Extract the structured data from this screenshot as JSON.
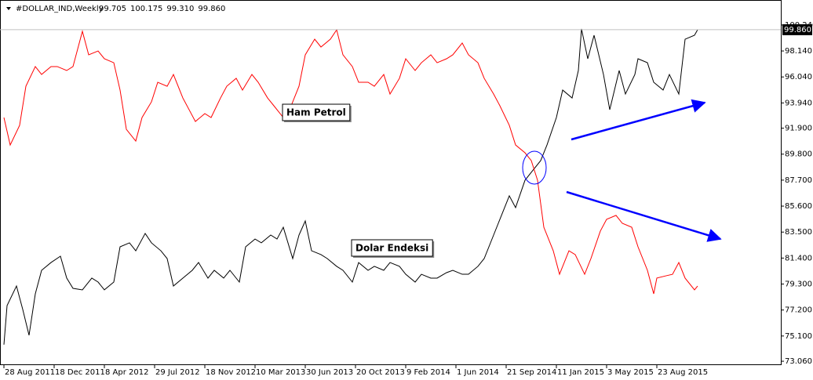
{
  "chart_data": {
    "type": "line",
    "title": "#DOLLAR_IND,Weekly",
    "header_values": [
      "99.705",
      "100.175",
      "99.310",
      "99.860"
    ],
    "xlim": [
      -1.25,
      247.5
    ],
    "xticks": [
      {
        "value": 0,
        "label": "28 Aug 2011"
      },
      {
        "value": 16,
        "label": "18 Dec 2011"
      },
      {
        "value": 32,
        "label": "8 Apr 2012"
      },
      {
        "value": 48,
        "label": "29 Jul 2012"
      },
      {
        "value": 64,
        "label": "18 Nov 2012"
      },
      {
        "value": 80,
        "label": "10 Mar 2013"
      },
      {
        "value": 96,
        "label": "30 Jun 2013"
      },
      {
        "value": 112,
        "label": "20 Oct 2013"
      },
      {
        "value": 128,
        "label": "9 Feb 2014"
      },
      {
        "value": 144,
        "label": "1 Jun 2014"
      },
      {
        "value": 160,
        "label": "21 Sep 2014"
      },
      {
        "value": 176,
        "label": "11 Jan 2015"
      },
      {
        "value": 192,
        "label": "3 May 2015"
      },
      {
        "value": 208,
        "label": "23 Aug 2015"
      }
    ],
    "ylim": [
      72.81,
      102.26
    ],
    "yticks": [
      {
        "value": 100.24,
        "label": "100.240"
      },
      {
        "value": 98.14,
        "label": "98.140"
      },
      {
        "value": 96.04,
        "label": "96.040"
      },
      {
        "value": 93.94,
        "label": "93.940"
      },
      {
        "value": 91.9,
        "label": "91.900"
      },
      {
        "value": 89.8,
        "label": "89.800"
      },
      {
        "value": 87.7,
        "label": "87.700"
      },
      {
        "value": 85.6,
        "label": "85.600"
      },
      {
        "value": 83.5,
        "label": "83.500"
      },
      {
        "value": 81.4,
        "label": "81.400"
      },
      {
        "value": 79.3,
        "label": "79.300"
      },
      {
        "value": 77.2,
        "label": "77.200"
      },
      {
        "value": 75.1,
        "label": "75.100"
      },
      {
        "value": 73.06,
        "label": "73.060"
      }
    ],
    "price_line": {
      "value": 99.86,
      "label": "99.860"
    },
    "grid": false,
    "series": [
      {
        "name": "Dolar Endeksi",
        "color": "#000000",
        "x": [
          0,
          1,
          4,
          6,
          8,
          10,
          12,
          15,
          18,
          20,
          22,
          25,
          28,
          30,
          32,
          35,
          37,
          40,
          42,
          45,
          47,
          50,
          52,
          54,
          57,
          60,
          62,
          65,
          67,
          70,
          72,
          75,
          77,
          80,
          82,
          85,
          87,
          89,
          92,
          94,
          96,
          98,
          101,
          103,
          106,
          108,
          111,
          113,
          116,
          118,
          121,
          123,
          126,
          128,
          131,
          133,
          136,
          138,
          141,
          143,
          146,
          148,
          151,
          153,
          156,
          158,
          161,
          163,
          166,
          168,
          171,
          173,
          176,
          178,
          181,
          183,
          184,
          186,
          188,
          191,
          193,
          196,
          198,
          201,
          202,
          205,
          207,
          210,
          212,
          215,
          217,
          220,
          221
        ],
        "values": [
          74.4,
          77.56,
          79.14,
          77.24,
          75.16,
          78.51,
          80.41,
          81.04,
          81.55,
          79.78,
          78.95,
          78.83,
          79.78,
          79.46,
          78.83,
          79.46,
          82.31,
          82.63,
          81.99,
          83.39,
          82.63,
          81.99,
          81.36,
          79.14,
          79.78,
          80.41,
          81.04,
          79.78,
          80.41,
          79.78,
          80.41,
          79.46,
          82.31,
          82.94,
          82.63,
          83.26,
          82.94,
          83.89,
          81.36,
          83.26,
          84.4,
          81.99,
          81.68,
          81.36,
          80.73,
          80.41,
          79.46,
          81.04,
          80.41,
          80.73,
          80.41,
          81.04,
          80.73,
          80.09,
          79.46,
          80.09,
          79.78,
          79.78,
          80.22,
          80.41,
          80.09,
          80.09,
          80.73,
          81.36,
          83.26,
          84.53,
          86.43,
          85.48,
          87.69,
          88.33,
          89.28,
          90.54,
          92.76,
          94.98,
          94.34,
          96.56,
          99.92,
          97.51,
          99.41,
          96.24,
          93.39,
          96.56,
          94.66,
          96.24,
          97.51,
          97.19,
          95.61,
          94.98,
          96.24,
          94.66,
          99.09,
          99.41,
          99.86
        ]
      },
      {
        "name": "Ham Petrol",
        "color": "#ff0000",
        "x": [
          0,
          2,
          5,
          7,
          10,
          12,
          15,
          17,
          20,
          22,
          25,
          27,
          30,
          32,
          35,
          37,
          39,
          42,
          44,
          47,
          49,
          52,
          54,
          57,
          59,
          61,
          64,
          66,
          69,
          71,
          74,
          76,
          79,
          81,
          84,
          86,
          89,
          91,
          94,
          96,
          99,
          101,
          104,
          106,
          108,
          111,
          113,
          116,
          118,
          121,
          123,
          126,
          128,
          131,
          133,
          136,
          138,
          141,
          143,
          146,
          148,
          151,
          153,
          156,
          158,
          161,
          163,
          166,
          168,
          170,
          172,
          175,
          177,
          180,
          182,
          185,
          187,
          190,
          192,
          195,
          197,
          200,
          202,
          205,
          207,
          208,
          211,
          213,
          215,
          217,
          220,
          221
        ],
        "values": [
          92.76,
          90.54,
          92.13,
          95.29,
          96.88,
          96.24,
          96.88,
          96.88,
          96.56,
          96.88,
          99.73,
          97.83,
          98.14,
          97.51,
          97.19,
          94.98,
          91.81,
          90.86,
          92.76,
          94.03,
          95.61,
          95.29,
          96.24,
          94.34,
          93.39,
          92.44,
          93.08,
          92.76,
          94.34,
          95.29,
          95.93,
          94.98,
          96.24,
          95.61,
          94.34,
          93.71,
          92.76,
          93.39,
          95.29,
          97.83,
          99.09,
          98.46,
          99.09,
          99.85,
          97.83,
          96.88,
          95.61,
          95.61,
          95.29,
          96.24,
          94.66,
          95.93,
          97.51,
          96.56,
          97.19,
          97.83,
          97.19,
          97.51,
          97.83,
          98.78,
          97.83,
          97.19,
          95.93,
          94.66,
          93.71,
          92.13,
          90.54,
          89.91,
          89.28,
          87.69,
          83.89,
          81.99,
          80.09,
          81.99,
          81.68,
          80.09,
          81.36,
          83.58,
          84.53,
          84.85,
          84.21,
          83.89,
          82.31,
          80.41,
          78.51,
          79.78,
          79.97,
          80.09,
          81.04,
          79.78,
          78.83,
          79.14
        ]
      }
    ]
  }
}
